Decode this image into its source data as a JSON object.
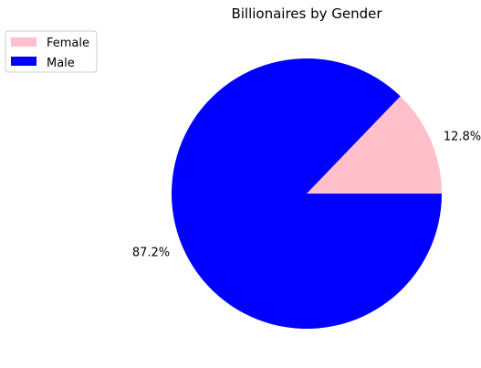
{
  "chart_data": {
    "type": "pie",
    "title": "Billionaires by Gender",
    "slices": [
      {
        "label": "Female",
        "value": 12.8,
        "display": "12.8%",
        "color": "#ffc0cb"
      },
      {
        "label": "Male",
        "value": 87.2,
        "display": "87.2%",
        "color": "#0000ff"
      }
    ],
    "start_angle_deg": 0,
    "direction": "counterclockwise",
    "legend": {
      "placement": "upper-left",
      "entries": [
        "Female",
        "Male"
      ]
    }
  }
}
